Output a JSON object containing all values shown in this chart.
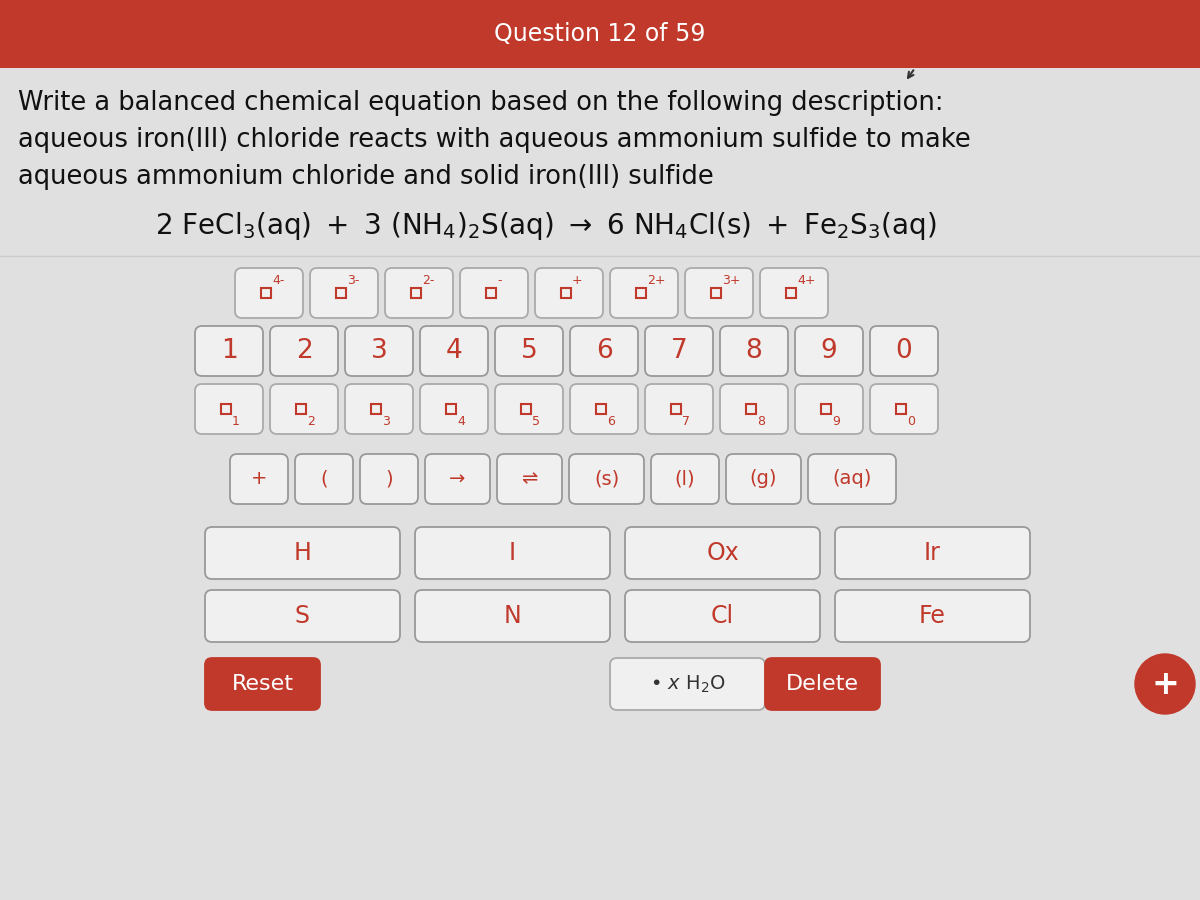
{
  "header_text": "Question 12 of 59",
  "header_bg": "#c0392b",
  "header_text_color": "#ffffff",
  "body_bg": "#e0e0e0",
  "kbd_bg": "#e8e8e8",
  "description_text_line1": "Write a balanced chemical equation based on the following description:",
  "description_text_line2": "aqueous iron(III) chloride reacts with aqueous ammonium sulfide to make",
  "description_text_line3": "aqueous ammonium chloride and solid iron(III) sulfide",
  "superscript_row": [
    "4-",
    "3-",
    "2-",
    "-",
    "+",
    "2+",
    "3+",
    "4+"
  ],
  "number_row": [
    "1",
    "2",
    "3",
    "4",
    "5",
    "6",
    "7",
    "8",
    "9",
    "0"
  ],
  "subscript_row": [
    "1",
    "2",
    "3",
    "4",
    "5",
    "6",
    "7",
    "8",
    "9",
    "0"
  ],
  "symbol_row": [
    "+",
    "(",
    ")",
    "→",
    "⇌",
    "(s)",
    "(l)",
    "(g)",
    "(aq)"
  ],
  "element_row1": [
    "H",
    "I",
    "Ox",
    "Ir"
  ],
  "element_row2": [
    "S",
    "N",
    "Cl",
    "Fe"
  ],
  "btn_bg": "#f0f0f0",
  "btn_bg_red": "#c0392b",
  "btn_text_red": "#c0392b",
  "btn_text_white": "#ffffff",
  "btn_border": "#aaaaaa",
  "btn_border_dark": "#888888"
}
